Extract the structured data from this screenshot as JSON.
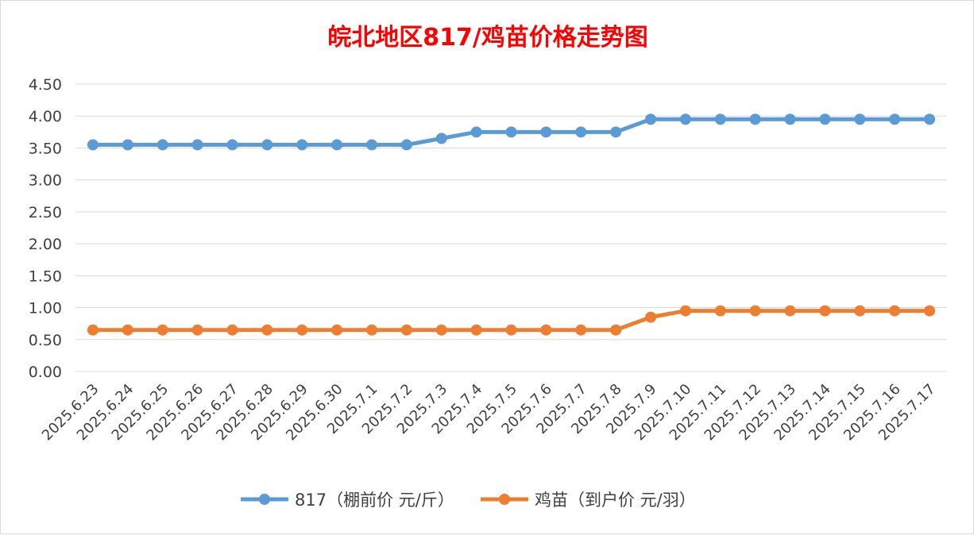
{
  "chart_data": {
    "type": "line",
    "title": "皖北地区817/鸡苗价格走势图",
    "categories": [
      "2025.6.23",
      "2025.6.24",
      "2025.6.25",
      "2025.6.26",
      "2025.6.27",
      "2025.6.28",
      "2025.6.29",
      "2025.6.30",
      "2025.7.1",
      "2025.7.2",
      "2025.7.3",
      "2025.7.4",
      "2025.7.5",
      "2025.7.6",
      "2025.7.7",
      "2025.7.8",
      "2025.7.9",
      "2025.7.10",
      "2025.7.11",
      "2025.7.12",
      "2025.7.13",
      "2025.7.14",
      "2025.7.15",
      "2025.7.16",
      "2025.7.17"
    ],
    "series": [
      {
        "name": "817（棚前价 元/斤）",
        "color": "#5b9bd5",
        "values": [
          3.55,
          3.55,
          3.55,
          3.55,
          3.55,
          3.55,
          3.55,
          3.55,
          3.55,
          3.55,
          3.65,
          3.75,
          3.75,
          3.75,
          3.75,
          3.75,
          3.95,
          3.95,
          3.95,
          3.95,
          3.95,
          3.95,
          3.95,
          3.95,
          3.95
        ]
      },
      {
        "name": "鸡苗（到户价 元/羽）",
        "color": "#ed7d31",
        "values": [
          0.65,
          0.65,
          0.65,
          0.65,
          0.65,
          0.65,
          0.65,
          0.65,
          0.65,
          0.65,
          0.65,
          0.65,
          0.65,
          0.65,
          0.65,
          0.65,
          0.85,
          0.95,
          0.95,
          0.95,
          0.95,
          0.95,
          0.95,
          0.95,
          0.95
        ]
      }
    ],
    "y_ticks": [
      "0.00",
      "0.50",
      "1.00",
      "1.50",
      "2.00",
      "2.50",
      "3.00",
      "3.50",
      "4.00",
      "4.50"
    ],
    "ylim": [
      0,
      4.5
    ],
    "grid": true,
    "legend_position": "bottom"
  }
}
